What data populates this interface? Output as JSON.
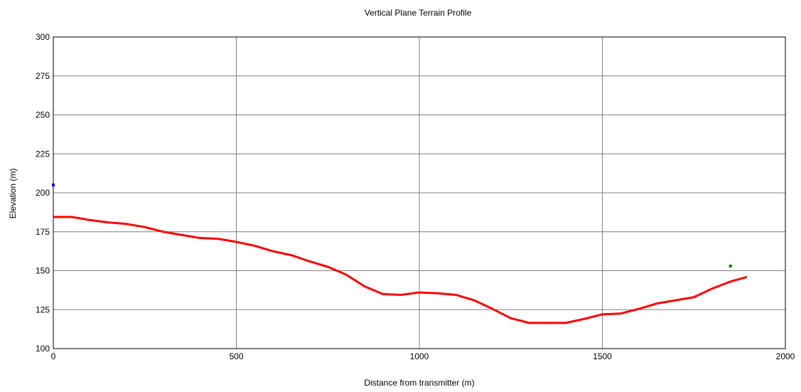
{
  "chart_data": {
    "type": "line",
    "title": "Vertical Plane Terrain Profile",
    "xlabel": "Distance from transmitter (m)",
    "ylabel": "Elevation (m)",
    "xlim": [
      0,
      2000
    ],
    "ylim": [
      100,
      300
    ],
    "xticks": [
      0,
      500,
      1000,
      1500,
      2000
    ],
    "yticks": [
      100,
      125,
      150,
      175,
      200,
      225,
      250,
      275,
      300
    ],
    "grid": true,
    "colors": {
      "terrain": "#ff0000",
      "transmitter": "#0000ff",
      "receiver": "#008000",
      "grid": "#808080"
    },
    "series": [
      {
        "values": [
          [
            0,
            184.5
          ],
          [
            50,
            184.5
          ],
          [
            100,
            182.5
          ],
          [
            150,
            181
          ],
          [
            200,
            180
          ],
          [
            250,
            178
          ],
          [
            300,
            175
          ],
          [
            350,
            173
          ],
          [
            400,
            171
          ],
          [
            450,
            170.5
          ],
          [
            500,
            168.5
          ],
          [
            550,
            166
          ],
          [
            600,
            162.5
          ],
          [
            650,
            160
          ],
          [
            700,
            156
          ],
          [
            750,
            152.5
          ],
          [
            800,
            147.5
          ],
          [
            850,
            140
          ],
          [
            900,
            135
          ],
          [
            950,
            134.5
          ],
          [
            1000,
            136
          ],
          [
            1050,
            135.5
          ],
          [
            1100,
            134.5
          ],
          [
            1150,
            131
          ],
          [
            1200,
            125.5
          ],
          [
            1250,
            119.5
          ],
          [
            1300,
            116.5
          ],
          [
            1350,
            116.5
          ],
          [
            1400,
            116.5
          ],
          [
            1450,
            119
          ],
          [
            1500,
            122
          ],
          [
            1550,
            122.5
          ],
          [
            1600,
            125.5
          ],
          [
            1650,
            129
          ],
          [
            1700,
            131
          ],
          [
            1750,
            133
          ],
          [
            1800,
            138.5
          ],
          [
            1850,
            143
          ],
          [
            1895,
            146
          ]
        ]
      }
    ],
    "points": [
      {
        "x": 0,
        "y": 205,
        "color": "#0000ff"
      },
      {
        "x": 1850,
        "y": 153,
        "color": "#008000"
      }
    ]
  }
}
